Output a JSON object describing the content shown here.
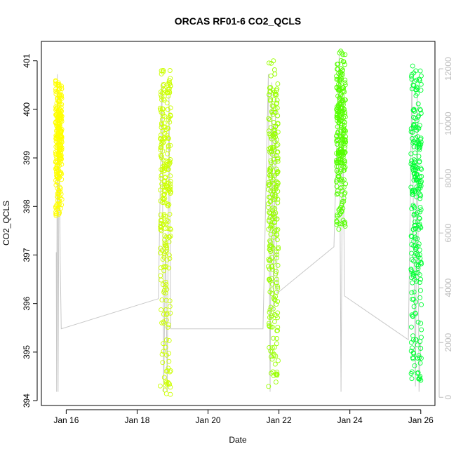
{
  "chart_data": {
    "type": "scatter",
    "title": "ORCAS RF01-6 CO2_QCLS",
    "xlabel": "Date",
    "ylabel": "CO2_QCLS",
    "x_ticks": [
      "Jan 16",
      "Jan 18",
      "Jan 20",
      "Jan 22",
      "Jan 24",
      "Jan 26"
    ],
    "x_tick_days": [
      16,
      18,
      20,
      22,
      24,
      26
    ],
    "xlim_days": [
      15.3,
      26.4
    ],
    "y_ticks": [
      394,
      395,
      396,
      397,
      398,
      399,
      400,
      401
    ],
    "ylim": [
      393.9,
      401.4
    ],
    "y2_ticks": [
      0,
      2000,
      4000,
      6000,
      8000,
      10000,
      12000
    ],
    "ylim2": [
      -300,
      13000
    ],
    "grid": false,
    "colors": {
      "flight1": "#ffff00",
      "flight2": "#ccff00",
      "flight3": "#99ff00",
      "flight4": "#55ff00",
      "flight5": "#00ff33",
      "secondary_line": "#c8c8c8",
      "secondary_axis": "#bdbdbd",
      "axis": "#000000"
    },
    "flights": [
      {
        "start_day": 15.7,
        "end_day": 15.88,
        "co2_min": 397.8,
        "co2_max": 400.6,
        "co2_mean": 399.5
      },
      {
        "start_day": 18.65,
        "end_day": 18.95,
        "co2_min": 394.1,
        "co2_max": 400.8,
        "co2_mean": 398.5
      },
      {
        "start_day": 21.7,
        "end_day": 21.98,
        "co2_min": 394.2,
        "co2_max": 401.0,
        "co2_mean": 398.3
      },
      {
        "start_day": 23.62,
        "end_day": 23.88,
        "co2_min": 397.5,
        "co2_max": 401.2,
        "co2_mean": 399.7
      },
      {
        "start_day": 25.72,
        "end_day": 26.02,
        "co2_min": 394.4,
        "co2_max": 401.0,
        "co2_mean": 398.3
      }
    ],
    "altitude_series": {
      "name": "",
      "x_days": [
        15.72,
        15.73,
        15.75,
        15.77,
        15.8,
        15.83,
        15.86,
        18.6,
        18.7,
        18.75,
        18.8,
        18.85,
        18.9,
        18.95,
        21.55,
        21.7,
        21.75,
        21.8,
        21.85,
        21.9,
        21.95,
        23.55,
        23.7,
        23.75,
        23.8,
        23.85,
        25.65,
        25.75,
        25.85,
        25.9,
        25.95,
        26.0
      ],
      "y": [
        5300,
        200,
        11800,
        200,
        10000,
        5000,
        2500,
        3600,
        11500,
        200,
        6000,
        200,
        11000,
        2500,
        2500,
        11800,
        200,
        11500,
        3000,
        10500,
        3800,
        5500,
        12500,
        200,
        11000,
        3700,
        2100,
        11600,
        400,
        11000,
        200,
        2000
      ]
    }
  }
}
